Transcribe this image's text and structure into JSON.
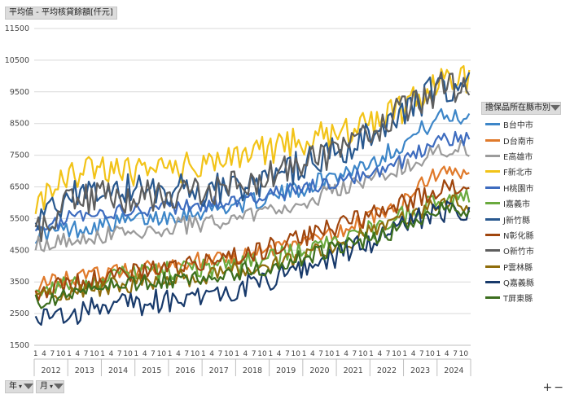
{
  "value_field": "平均值 - 平均核貸餘額[仟元]",
  "legend_title": "擔保品所在縣市別",
  "row_fields": [
    "年",
    "月"
  ],
  "zoom_buttons": [
    "+",
    "−"
  ],
  "chart_data": {
    "type": "line",
    "ylim": [
      1500,
      11500
    ],
    "yticks": [
      1500,
      2500,
      3500,
      4500,
      5500,
      6500,
      7500,
      8500,
      9500,
      10500,
      11500
    ],
    "years": [
      "2012",
      "2013",
      "2014",
      "2015",
      "2016",
      "2017",
      "2018",
      "2019",
      "2020",
      "2021",
      "2022",
      "2023",
      "2024"
    ],
    "month_ticks": [
      "1",
      "4",
      "7",
      "10"
    ],
    "months_per_year": 12,
    "series": [
      {
        "name": "B台中市",
        "color": "#3d86c8",
        "base": [
          5000,
          5150,
          5300,
          5450,
          5600,
          5750,
          5950,
          6150,
          6500,
          6900,
          7300,
          7900,
          8700
        ],
        "amp": 180
      },
      {
        "name": "D台南市",
        "color": "#e07a2b",
        "base": [
          3400,
          3600,
          3800,
          3900,
          4050,
          4200,
          4350,
          4500,
          4800,
          5100,
          5500,
          6100,
          7000
        ],
        "amp": 160
      },
      {
        "name": "E高雄市",
        "color": "#9b9b9b",
        "base": [
          4700,
          4850,
          5000,
          5100,
          5250,
          5350,
          5550,
          5750,
          6050,
          6400,
          6750,
          7200,
          7700
        ],
        "amp": 180
      },
      {
        "name": "F新北市",
        "color": "#f2c318",
        "base": [
          5900,
          6800,
          7100,
          7000,
          7000,
          7300,
          7550,
          7700,
          7950,
          8200,
          8500,
          9000,
          9900
        ],
        "amp": 300
      },
      {
        "name": "H桃園市",
        "color": "#3e6cbf",
        "base": [
          5200,
          5500,
          5650,
          5750,
          5850,
          5950,
          6100,
          6250,
          6450,
          6650,
          6950,
          7350,
          8000
        ],
        "amp": 150
      },
      {
        "name": "I嘉義市",
        "color": "#6aaa3e",
        "base": [
          3300,
          3450,
          3600,
          3750,
          3850,
          3950,
          4050,
          4250,
          4500,
          4800,
          5150,
          5600,
          6200
        ],
        "amp": 200
      },
      {
        "name": "J新竹縣",
        "color": "#28588f",
        "base": [
          5400,
          6200,
          6400,
          6400,
          6400,
          6400,
          6500,
          6800,
          7200,
          7600,
          8100,
          8700,
          9700
        ],
        "amp": 320
      },
      {
        "name": "N彰化縣",
        "color": "#a0460e",
        "base": [
          3200,
          3450,
          3600,
          3800,
          3950,
          4150,
          4350,
          4600,
          4950,
          5250,
          5600,
          6000,
          6400
        ],
        "amp": 200
      },
      {
        "name": "O新竹市",
        "color": "#5e5e5e",
        "base": [
          5100,
          6000,
          6200,
          6200,
          6300,
          6400,
          6550,
          6800,
          7250,
          7700,
          8300,
          8950,
          9600
        ],
        "amp": 330
      },
      {
        "name": "P雲林縣",
        "color": "#8f6d0b",
        "base": [
          3000,
          3200,
          3350,
          3450,
          3550,
          3700,
          3850,
          4050,
          4350,
          4650,
          5050,
          5500,
          6000
        ],
        "amp": 180
      },
      {
        "name": "Q嘉義縣",
        "color": "#183a6b",
        "base": [
          2200,
          2500,
          2700,
          2800,
          2950,
          3100,
          3300,
          3600,
          3950,
          4350,
          4800,
          5300,
          5700
        ],
        "amp": 240
      },
      {
        "name": "T屏東縣",
        "color": "#3c6e1e",
        "base": [
          2900,
          3100,
          3300,
          3450,
          3550,
          3650,
          3800,
          4000,
          4250,
          4550,
          4850,
          5250,
          5800
        ],
        "amp": 170
      }
    ]
  }
}
